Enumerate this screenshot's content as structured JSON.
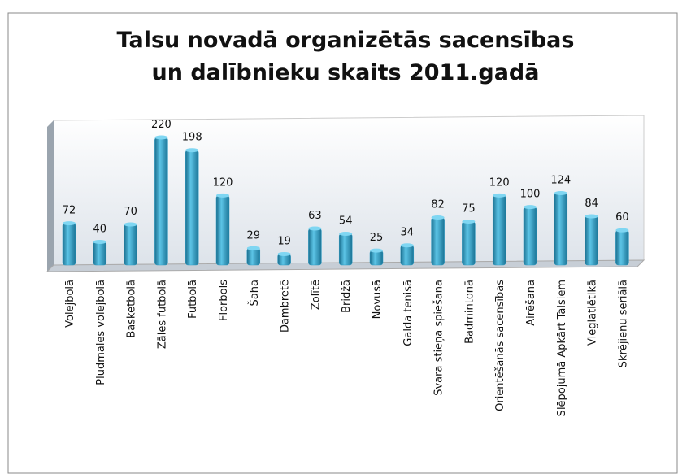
{
  "chart_data": {
    "type": "bar",
    "title": "Talsu novadā organizētās sacensības un dalībnieku skaits 2011.gadā",
    "categories": [
      "Volejbolā",
      "Pludmales volejbolā",
      "Basketbolā",
      "Zāles futbolā",
      "Futbolā",
      "Florbols",
      "Šahā",
      "Dambretē",
      "Zolītē",
      "Bridžā",
      "Novusā",
      "Galda tenisā",
      "Svara stieņa spiešana",
      "Badmintonā",
      "Orientēšanās sacensības",
      "Airēšana",
      "Slēpojumā Apkārt Talsiem",
      "Vieglatlētikā",
      "Skrējienu seriālā"
    ],
    "values": [
      72,
      40,
      70,
      220,
      198,
      120,
      29,
      19,
      63,
      54,
      25,
      34,
      82,
      75,
      120,
      100,
      124,
      84,
      60
    ],
    "color": "#2e9cc4"
  }
}
